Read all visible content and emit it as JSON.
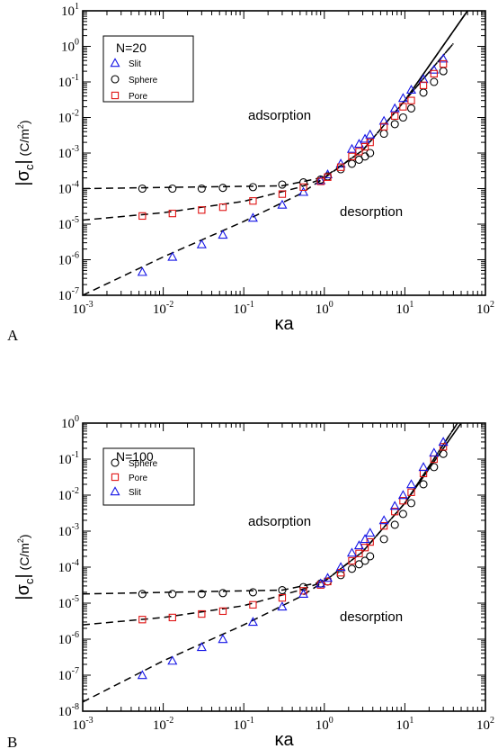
{
  "chart_data": [
    {
      "type": "scatter",
      "panel_label": "A",
      "xscale": "log",
      "yscale": "log",
      "xlim": [
        0.001,
        100
      ],
      "ylim": [
        1e-07,
        10
      ],
      "x_ticks": [
        {
          "base": "10",
          "exp": "-3"
        },
        {
          "base": "10",
          "exp": "-2"
        },
        {
          "base": "10",
          "exp": "-1"
        },
        {
          "base": "10",
          "exp": "0"
        },
        {
          "base": "10",
          "exp": "1"
        },
        {
          "base": "10",
          "exp": "2"
        }
      ],
      "y_ticks": [
        {
          "base": "10",
          "exp": "-7"
        },
        {
          "base": "10",
          "exp": "-6"
        },
        {
          "base": "10",
          "exp": "-5"
        },
        {
          "base": "10",
          "exp": "-4"
        },
        {
          "base": "10",
          "exp": "-3"
        },
        {
          "base": "10",
          "exp": "-2"
        },
        {
          "base": "10",
          "exp": "-1"
        },
        {
          "base": "10",
          "exp": "0"
        },
        {
          "base": "10",
          "exp": "1"
        }
      ],
      "xlabel": "κa",
      "ylabel_main": "|σ",
      "ylabel_sub": "c",
      "ylabel_bar": "|",
      "ylabel_unit": "(C/m",
      "ylabel_unit_sup": "2",
      "ylabel_unit_close": ")",
      "legend_title": "N=20",
      "legend_position": "top-left",
      "annotations": [
        "adsorption",
        "desorption"
      ],
      "series": [
        {
          "name": "Slit",
          "marker": "triangle",
          "color": "#1515e6",
          "x": [
            0.0055,
            0.013,
            0.03,
            0.055,
            0.13,
            0.3,
            0.55,
            0.9,
            1.1,
            1.6,
            2.2,
            2.7,
            3.2,
            3.7,
            5.5,
            7.5,
            9.5,
            12,
            17,
            23,
            30
          ],
          "y": [
            4.5e-07,
            1.2e-06,
            2.7e-06,
            5e-06,
            1.5e-05,
            3.5e-05,
            8e-05,
            0.00017,
            0.00025,
            0.0005,
            0.0013,
            0.0018,
            0.0025,
            0.0033,
            0.008,
            0.018,
            0.035,
            0.06,
            0.12,
            0.22,
            0.45
          ]
        },
        {
          "name": "Sphere",
          "marker": "circle",
          "color": "#000000",
          "x": [
            0.0055,
            0.013,
            0.03,
            0.055,
            0.13,
            0.3,
            0.55,
            0.9,
            1.1,
            1.6,
            2.2,
            2.7,
            3.2,
            3.7,
            5.5,
            7.5,
            9.5,
            12,
            17,
            23,
            30
          ],
          "y": [
            0.0001,
            0.0001,
            0.0001,
            0.000105,
            0.00011,
            0.00013,
            0.00015,
            0.00018,
            0.00022,
            0.00035,
            0.0005,
            0.00065,
            0.0008,
            0.001,
            0.0035,
            0.0065,
            0.01,
            0.018,
            0.05,
            0.1,
            0.2
          ]
        },
        {
          "name": "Pore",
          "marker": "square",
          "color": "#e01515",
          "x": [
            0.0055,
            0.013,
            0.03,
            0.055,
            0.13,
            0.3,
            0.55,
            0.9,
            1.1,
            1.6,
            2.2,
            2.7,
            3.2,
            3.7,
            5.5,
            7.5,
            9.5,
            12,
            17,
            23,
            30
          ],
          "y": [
            1.7e-05,
            2e-05,
            2.5e-05,
            3e-05,
            4.5e-05,
            7e-05,
            0.00011,
            0.00016,
            0.00021,
            0.0004,
            0.0008,
            0.0011,
            0.0015,
            0.002,
            0.0055,
            0.011,
            0.02,
            0.03,
            0.08,
            0.17,
            0.32
          ]
        }
      ]
    },
    {
      "type": "scatter",
      "panel_label": "B",
      "xscale": "log",
      "yscale": "log",
      "xlim": [
        0.001,
        100
      ],
      "ylim": [
        1e-08,
        1
      ],
      "x_ticks": [
        {
          "base": "10",
          "exp": "-3"
        },
        {
          "base": "10",
          "exp": "-2"
        },
        {
          "base": "10",
          "exp": "-1"
        },
        {
          "base": "10",
          "exp": "0"
        },
        {
          "base": "10",
          "exp": "1"
        },
        {
          "base": "10",
          "exp": "2"
        }
      ],
      "y_ticks": [
        {
          "base": "10",
          "exp": "-8"
        },
        {
          "base": "10",
          "exp": "-7"
        },
        {
          "base": "10",
          "exp": "-6"
        },
        {
          "base": "10",
          "exp": "-5"
        },
        {
          "base": "10",
          "exp": "-4"
        },
        {
          "base": "10",
          "exp": "-3"
        },
        {
          "base": "10",
          "exp": "-2"
        },
        {
          "base": "10",
          "exp": "-1"
        },
        {
          "base": "10",
          "exp": "0"
        }
      ],
      "xlabel": "κa",
      "ylabel_main": "|σ",
      "ylabel_sub": "c",
      "ylabel_bar": "|",
      "ylabel_unit": "(C/m",
      "ylabel_unit_sup": "2",
      "ylabel_unit_close": ")",
      "legend_title": "N=100",
      "legend_position": "top-left",
      "annotations": [
        "adsorption",
        "desorption"
      ],
      "series": [
        {
          "name": "Sphere",
          "marker": "circle",
          "color": "#000000",
          "x": [
            0.0055,
            0.013,
            0.03,
            0.055,
            0.13,
            0.3,
            0.55,
            0.9,
            1.1,
            1.6,
            2.2,
            2.7,
            3.2,
            3.7,
            5.5,
            7.5,
            9.5,
            12,
            17,
            23,
            30
          ],
          "y": [
            1.8e-05,
            1.8e-05,
            1.8e-05,
            1.9e-05,
            2e-05,
            2.3e-05,
            2.8e-05,
            3.5e-05,
            4e-05,
            6e-05,
            9e-05,
            0.00012,
            0.00015,
            0.0002,
            0.0006,
            0.0015,
            0.003,
            0.006,
            0.02,
            0.06,
            0.14
          ]
        },
        {
          "name": "Pore",
          "marker": "square",
          "color": "#e01515",
          "x": [
            0.0055,
            0.013,
            0.03,
            0.055,
            0.13,
            0.3,
            0.55,
            0.9,
            1.1,
            1.6,
            2.2,
            2.7,
            3.2,
            3.7,
            5.5,
            7.5,
            9.5,
            12,
            17,
            23,
            30
          ],
          "y": [
            3.5e-06,
            4e-06,
            5e-06,
            6e-06,
            9e-06,
            1.4e-05,
            2.2e-05,
            3.2e-05,
            4e-05,
            7e-05,
            0.00015,
            0.00024,
            0.00035,
            0.0005,
            0.0014,
            0.0035,
            0.007,
            0.012,
            0.04,
            0.1,
            0.22
          ]
        },
        {
          "name": "Slit",
          "marker": "triangle",
          "color": "#1515e6",
          "x": [
            0.0055,
            0.013,
            0.03,
            0.055,
            0.13,
            0.3,
            0.55,
            0.9,
            1.1,
            1.6,
            2.2,
            2.7,
            3.2,
            3.7,
            5.5,
            7.5,
            9.5,
            12,
            17,
            23,
            30
          ],
          "y": [
            1e-07,
            2.5e-07,
            6e-07,
            1e-06,
            3e-06,
            8e-06,
            1.8e-05,
            3.5e-05,
            5e-05,
            0.0001,
            0.00025,
            0.0004,
            0.0006,
            0.0009,
            0.002,
            0.005,
            0.01,
            0.02,
            0.06,
            0.15,
            0.3
          ]
        }
      ]
    }
  ]
}
